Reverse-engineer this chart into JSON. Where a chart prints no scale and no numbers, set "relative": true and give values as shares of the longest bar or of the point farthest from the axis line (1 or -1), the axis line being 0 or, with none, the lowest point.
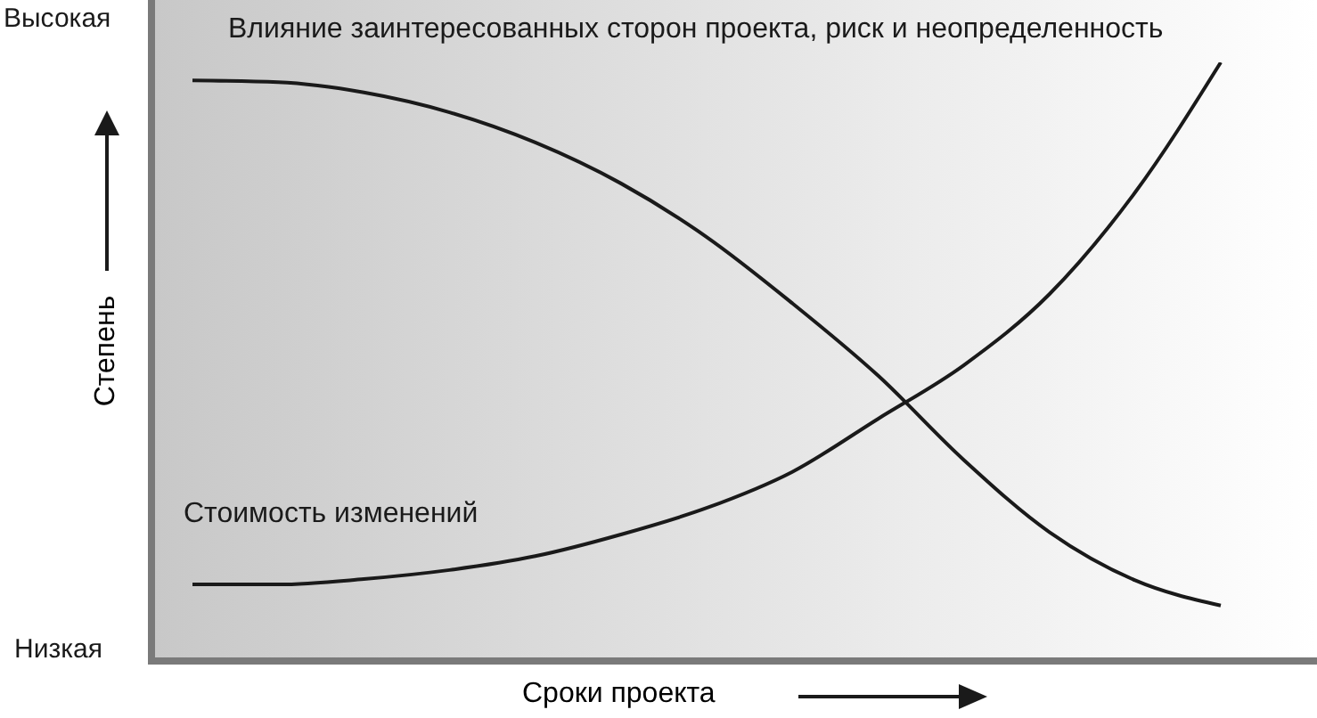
{
  "chart_data": {
    "type": "line",
    "relative": true,
    "xlabel": "Сроки проекта",
    "ylabel": "Степень",
    "annotations": [
      "Высокая",
      "Низкая"
    ],
    "categories": [
      null,
      null,
      null,
      null,
      null,
      null,
      null,
      null,
      null,
      null,
      null,
      null,
      null
    ],
    "series": [
      {
        "name": "Влияние заинтересованных сторон проекта, риск и неопределенность",
        "color": "#1a1a1a",
        "values": [
          0.97,
          0.967,
          0.95,
          0.917,
          0.867,
          0.799,
          0.71,
          0.6,
          0.48,
          0.34,
          0.22,
          0.14,
          0.098
        ]
      },
      {
        "name": "Стоимость изменений",
        "color": "#1a1a1a",
        "values": [
          0.133,
          0.133,
          0.142,
          0.157,
          0.18,
          0.216,
          0.26,
          0.32,
          0.408,
          0.497,
          0.615,
          0.784,
          1
        ]
      }
    ],
    "legend": false,
    "grid": false,
    "marker": "none",
    "line_style": "solid"
  }
}
